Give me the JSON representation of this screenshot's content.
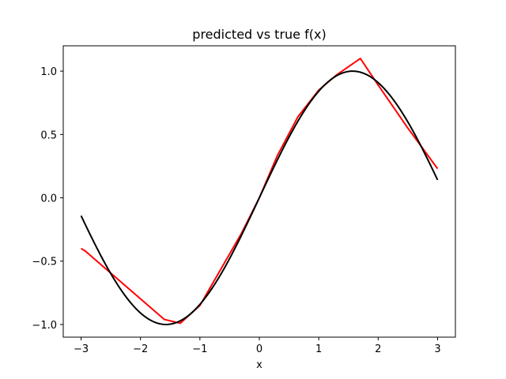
{
  "chart_data": {
    "type": "line",
    "title": "predicted vs true f(x)",
    "xlabel": "x",
    "ylabel": "",
    "xlim": [
      -3.3,
      3.3
    ],
    "ylim": [
      -1.1,
      1.2
    ],
    "xticks": [
      -3,
      -2,
      -1,
      0,
      1,
      2,
      3
    ],
    "xtick_labels": [
      "−3",
      "−2",
      "−1",
      "0",
      "1",
      "2",
      "3"
    ],
    "yticks": [
      -1.0,
      -0.5,
      0.0,
      0.5,
      1.0
    ],
    "ytick_labels": [
      "−1.0",
      "−0.5",
      "0.0",
      "0.5",
      "1.0"
    ],
    "grid": false,
    "legend": "none",
    "series": [
      {
        "key": "predicted",
        "color": "#ff0000",
        "x": [
          -3.0,
          -2.93,
          -1.6,
          -1.33,
          -1.0,
          -0.3,
          0.0,
          0.3,
          0.65,
          1.0,
          1.3,
          1.7,
          2.0,
          2.5,
          3.0
        ],
        "y": [
          -0.4,
          -0.42,
          -0.96,
          -0.99,
          -0.85,
          -0.28,
          0.0,
          0.33,
          0.64,
          0.85,
          0.97,
          1.1,
          0.89,
          0.55,
          0.23
        ]
      },
      {
        "key": "true",
        "color": "#000000",
        "function": "sin",
        "x": [
          -3.0,
          -2.75,
          -2.5,
          -2.25,
          -2.0,
          -1.75,
          -1.571,
          -1.25,
          -1.0,
          -0.75,
          -0.5,
          -0.25,
          0.0,
          0.25,
          0.5,
          0.75,
          1.0,
          1.25,
          1.571,
          1.75,
          2.0,
          2.25,
          2.5,
          2.75,
          3.0
        ],
        "y": [
          -0.141,
          -0.382,
          -0.598,
          -0.778,
          -0.909,
          -0.984,
          -1.0,
          -0.949,
          -0.841,
          -0.682,
          -0.479,
          -0.247,
          0.0,
          0.247,
          0.479,
          0.682,
          0.841,
          0.949,
          1.0,
          0.984,
          0.909,
          0.778,
          0.598,
          0.382,
          0.141
        ]
      }
    ]
  }
}
